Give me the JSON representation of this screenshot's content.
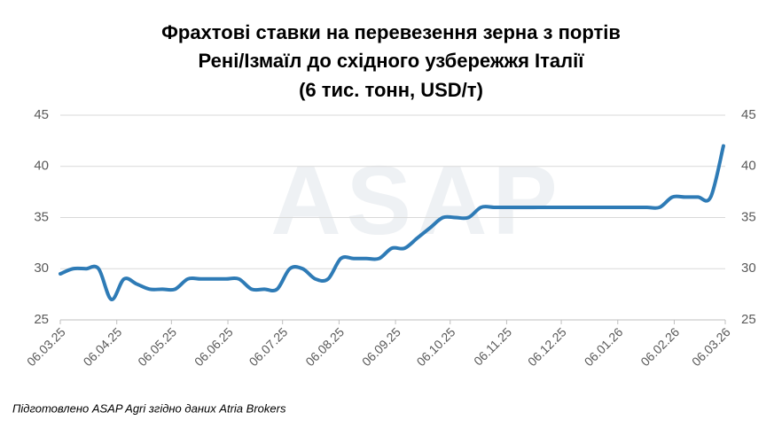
{
  "chart_data": {
    "type": "line",
    "title": [
      "Фрахтові ставки на перевезення зерна з портів",
      "Рені/Ізмаїл до східного узбережжя Італії",
      "(6 тис. тонн, USD/т)"
    ],
    "watermark": "ASAP",
    "note": "Підготовлено ASAP Agri згідно даних Atria Brokers",
    "x": [
      "06.03.25",
      "13.03.25",
      "20.03.25",
      "27.03.25",
      "03.04.25",
      "10.04.25",
      "17.04.25",
      "24.04.25",
      "01.05.25",
      "08.05.25",
      "15.05.25",
      "22.05.25",
      "29.05.25",
      "05.06.25",
      "12.06.25",
      "19.06.25",
      "26.06.25",
      "03.07.25",
      "10.07.25",
      "17.07.25",
      "24.07.25",
      "31.07.25",
      "07.08.25",
      "14.08.25",
      "21.08.25",
      "28.08.25",
      "04.09.25",
      "11.09.25",
      "18.09.25",
      "25.09.25",
      "02.10.25",
      "09.10.25",
      "16.10.25",
      "23.10.25",
      "30.10.25",
      "06.11.25",
      "13.11.25",
      "20.11.25",
      "27.11.25",
      "04.12.25",
      "11.12.25",
      "18.12.25",
      "25.12.25",
      "01.01.26",
      "08.01.26",
      "15.01.26",
      "22.01.26",
      "29.01.26",
      "05.02.26",
      "12.02.26",
      "19.02.26",
      "26.02.26",
      "05.03.26"
    ],
    "series": [
      {
        "name": "USD/т",
        "color": "#2e7bb6",
        "values": [
          29.5,
          30,
          30,
          30,
          27,
          29,
          28.5,
          28,
          28,
          28,
          29,
          29,
          29,
          29,
          29,
          28,
          28,
          28,
          30,
          30,
          29,
          29,
          31,
          31,
          31,
          31,
          32,
          32,
          33,
          34,
          35,
          35,
          35,
          36,
          36,
          36,
          36,
          36,
          36,
          36,
          36,
          36,
          36,
          36,
          36,
          36,
          36,
          36,
          37,
          37,
          37,
          37,
          42
        ]
      }
    ],
    "xlim": [
      "06.03.25",
      "06.03.26"
    ],
    "xticks": [
      "06.03.25",
      "06.04.25",
      "06.05.25",
      "06.06.25",
      "06.07.25",
      "06.08.25",
      "06.09.25",
      "06.10.25",
      "06.11.25",
      "06.12.25",
      "06.01.26",
      "06.02.26",
      "06.03.26"
    ],
    "ylim": [
      25,
      45
    ],
    "yticks": [
      25,
      30,
      35,
      40,
      45
    ],
    "y2lim": [
      25,
      45
    ],
    "y2ticks": [
      25,
      30,
      35,
      40,
      45
    ],
    "grid": true
  }
}
